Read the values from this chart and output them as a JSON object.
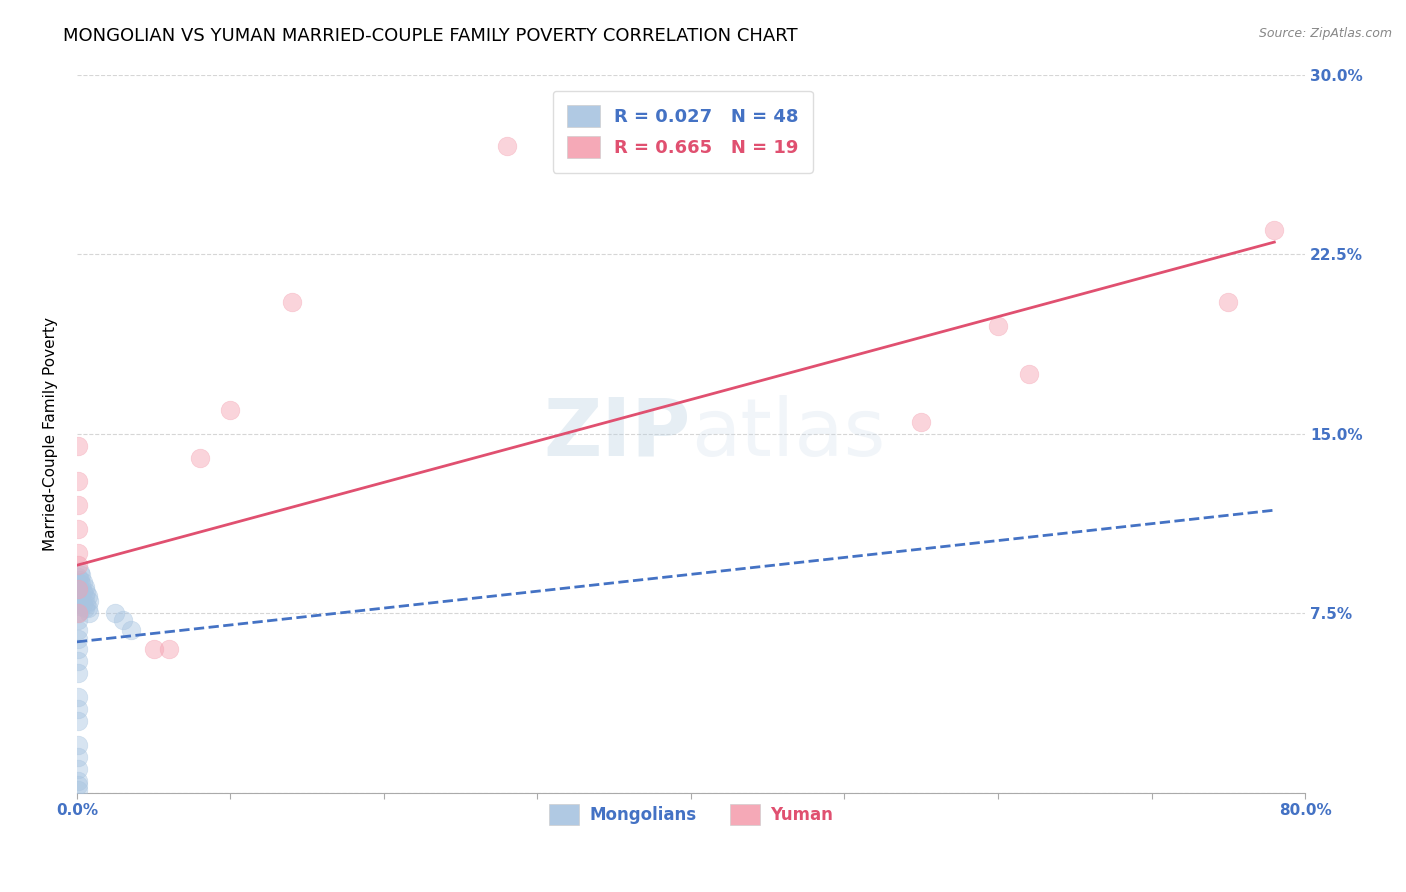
{
  "title": "MONGOLIAN VS YUMAN MARRIED-COUPLE FAMILY POVERTY CORRELATION CHART",
  "source": "Source: ZipAtlas.com",
  "ylabel": "Married-Couple Family Poverty",
  "xlabel_mongolians": "Mongolians",
  "xlabel_yuman": "Yuman",
  "watermark_zip": "ZIP",
  "watermark_atlas": "atlas",
  "xlim": [
    0.0,
    0.8
  ],
  "ylim": [
    0.0,
    0.3
  ],
  "xticks": [
    0.0,
    0.1,
    0.2,
    0.3,
    0.4,
    0.5,
    0.6,
    0.7,
    0.8
  ],
  "yticks": [
    0.0,
    0.075,
    0.15,
    0.225,
    0.3
  ],
  "ytick_labels": [
    "",
    "7.5%",
    "15.0%",
    "22.5%",
    "30.0%"
  ],
  "xtick_labels": [
    "0.0%",
    "",
    "",
    "",
    "",
    "",
    "",
    "",
    "80.0%"
  ],
  "mongolian_color": "#a8c4e0",
  "yuman_color": "#f4a0b0",
  "mongolian_line_color": "#4472c4",
  "yuman_line_color": "#e05070",
  "legend_R_mongolian": "R = 0.027",
  "legend_N_mongolian": "N = 48",
  "legend_R_yuman": "R = 0.665",
  "legend_N_yuman": "N = 19",
  "mongolian_scatter_x": [
    0.001,
    0.001,
    0.001,
    0.001,
    0.001,
    0.001,
    0.001,
    0.001,
    0.002,
    0.002,
    0.002,
    0.002,
    0.002,
    0.002,
    0.003,
    0.003,
    0.003,
    0.003,
    0.004,
    0.004,
    0.004,
    0.005,
    0.005,
    0.005,
    0.006,
    0.006,
    0.007,
    0.007,
    0.008,
    0.008,
    0.001,
    0.001,
    0.001,
    0.001,
    0.025,
    0.03,
    0.035,
    0.001,
    0.001,
    0.001,
    0.001,
    0.001,
    0.001,
    0.001,
    0.001,
    0.001,
    0.001,
    0.001
  ],
  "mongolian_scatter_y": [
    0.09,
    0.088,
    0.086,
    0.084,
    0.082,
    0.08,
    0.078,
    0.075,
    0.092,
    0.089,
    0.085,
    0.082,
    0.079,
    0.076,
    0.091,
    0.087,
    0.083,
    0.08,
    0.088,
    0.084,
    0.079,
    0.086,
    0.082,
    0.077,
    0.084,
    0.079,
    0.082,
    0.077,
    0.08,
    0.075,
    0.072,
    0.068,
    0.064,
    0.06,
    0.075,
    0.072,
    0.068,
    0.055,
    0.05,
    0.04,
    0.035,
    0.03,
    0.02,
    0.015,
    0.01,
    0.005,
    0.003,
    0.001
  ],
  "yuman_scatter_x": [
    0.001,
    0.001,
    0.001,
    0.001,
    0.001,
    0.05,
    0.06,
    0.08,
    0.1,
    0.14,
    0.28,
    0.55,
    0.6,
    0.62,
    0.75,
    0.78,
    0.001,
    0.001,
    0.001
  ],
  "yuman_scatter_y": [
    0.1,
    0.11,
    0.095,
    0.085,
    0.075,
    0.06,
    0.06,
    0.14,
    0.16,
    0.205,
    0.27,
    0.155,
    0.195,
    0.175,
    0.205,
    0.235,
    0.13,
    0.145,
    0.12
  ],
  "mongolian_trend_x": [
    0.0,
    0.78
  ],
  "mongolian_trend_y": [
    0.063,
    0.118
  ],
  "yuman_trend_x": [
    0.0,
    0.78
  ],
  "yuman_trend_y": [
    0.095,
    0.23
  ],
  "background_color": "#ffffff",
  "grid_color": "#cccccc",
  "tick_color_x": "#4472c4",
  "tick_color_y": "#4472c4",
  "title_fontsize": 13,
  "axis_label_fontsize": 11,
  "tick_fontsize": 11,
  "scatter_size": 180,
  "scatter_alpha": 0.45,
  "scatter_linewidth": 0.5
}
